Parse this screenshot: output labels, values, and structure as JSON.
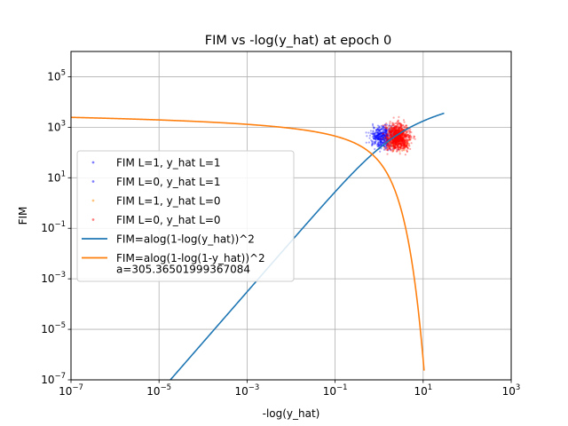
{
  "chart_data": {
    "type": "scatter",
    "title": "FIM vs -log(y_hat) at epoch 0",
    "xlabel": "-log(y_hat)",
    "ylabel": "FIM",
    "xscale": "log",
    "yscale": "log",
    "xlim": [
      1e-07,
      1000
    ],
    "ylim": [
      1e-07,
      1000000
    ],
    "grid": true,
    "legend_position": "center-left",
    "x_ticks": [
      {
        "value": 1e-07,
        "base": "10",
        "exp": "−7"
      },
      {
        "value": 1e-05,
        "base": "10",
        "exp": "−5"
      },
      {
        "value": 0.001,
        "base": "10",
        "exp": "−3"
      },
      {
        "value": 0.1,
        "base": "10",
        "exp": "−1"
      },
      {
        "value": 10,
        "base": "10",
        "exp": "1"
      },
      {
        "value": 1000,
        "base": "10",
        "exp": "3"
      }
    ],
    "y_ticks": [
      {
        "value": 1e-07,
        "base": "10",
        "exp": "−7"
      },
      {
        "value": 1e-05,
        "base": "10",
        "exp": "−5"
      },
      {
        "value": 0.001,
        "base": "10",
        "exp": "−3"
      },
      {
        "value": 0.1,
        "base": "10",
        "exp": "−1"
      },
      {
        "value": 10,
        "base": "10",
        "exp": "1"
      },
      {
        "value": 1000,
        "base": "10",
        "exp": "3"
      },
      {
        "value": 100000,
        "base": "10",
        "exp": "5"
      }
    ],
    "a": 305.36501999367084,
    "series": [
      {
        "name": "FIM L=1, y_hat L=1",
        "kind": "scatter",
        "color": "#0000ff",
        "count": 260,
        "x_range": [
          0.4,
          3.0
        ],
        "y_range": [
          80,
          2000
        ]
      },
      {
        "name": "FIM L=0, y_hat L=1",
        "kind": "scatter",
        "color": "#0000ff",
        "count": 200,
        "x_range": [
          0.5,
          4.0
        ],
        "y_range": [
          60,
          2500
        ]
      },
      {
        "name": "FIM L=1, y_hat L=0",
        "kind": "scatter",
        "color": "#ff8c00",
        "count": 140,
        "x_range": [
          1.0,
          7.0
        ],
        "y_range": [
          40,
          3000
        ]
      },
      {
        "name": "FIM L=0, y_hat L=0",
        "kind": "scatter",
        "color": "#ff0000",
        "count": 900,
        "x_range": [
          0.9,
          8.0
        ],
        "y_range": [
          50,
          3500
        ]
      },
      {
        "name": "FIM=alog(1-log(y_hat))^2",
        "kind": "line",
        "color": "#1f77b4",
        "x_range": [
          1e-05,
          30
        ]
      },
      {
        "name": "FIM=alog(1-log(1-y_hat))^2",
        "kind": "line",
        "color": "#ff7f0e",
        "x_range": [
          1e-07,
          10.5
        ]
      }
    ],
    "legend_extra": "a=305.36501999367084"
  }
}
